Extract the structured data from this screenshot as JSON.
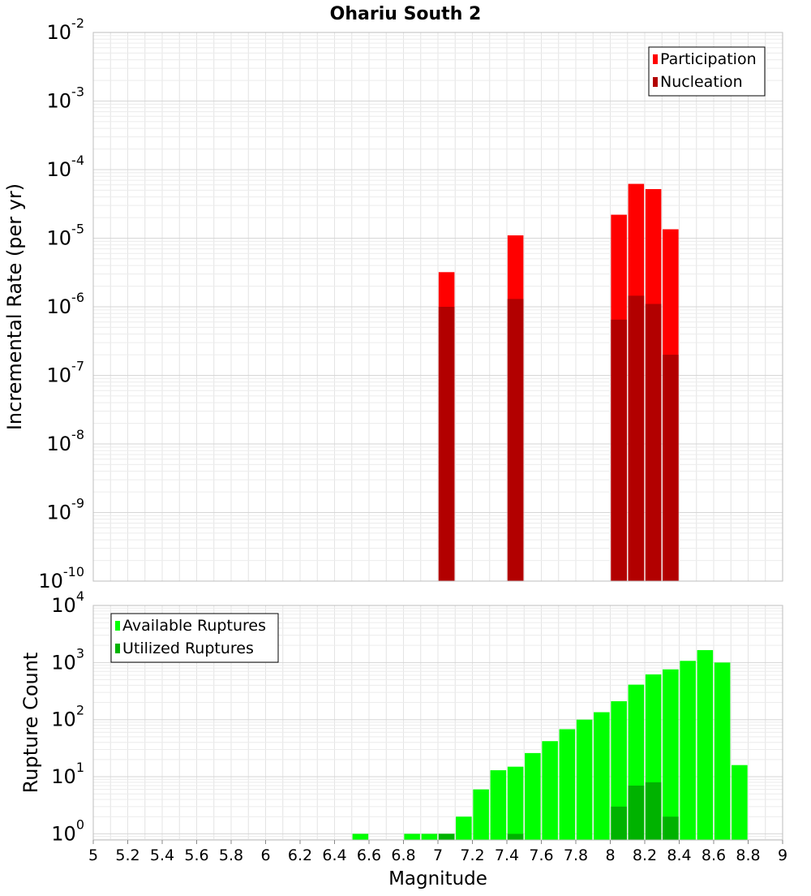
{
  "title": "Ohariu South 2",
  "chart_data": [
    {
      "type": "bar",
      "title": "Ohariu South 2",
      "xlabel": "",
      "ylabel": "Incremental Rate (per yr)",
      "yscale": "log",
      "ylim": [
        1e-10,
        0.01
      ],
      "xlim": [
        5,
        9
      ],
      "y_tick_exponents": [
        -10,
        -9,
        -8,
        -7,
        -6,
        -5,
        -4,
        -3,
        -2
      ],
      "legend_position": "top-right",
      "grid": true,
      "series": [
        {
          "name": "Participation",
          "color": "#ff0000",
          "x": [
            7.05,
            7.45,
            8.05,
            8.15,
            8.25,
            8.35
          ],
          "values": [
            3.2e-06,
            1.1e-05,
            2.2e-05,
            6.2e-05,
            5.2e-05,
            1.35e-05
          ]
        },
        {
          "name": "Nucleation",
          "color": "#b20000",
          "x": [
            7.05,
            7.45,
            8.05,
            8.15,
            8.25,
            8.35
          ],
          "values": [
            1e-06,
            1.3e-06,
            6.5e-07,
            1.45e-06,
            1.1e-06,
            2e-07
          ]
        }
      ]
    },
    {
      "type": "bar",
      "title": "",
      "xlabel": "Magnitude",
      "ylabel": "Rupture Count",
      "yscale": "log",
      "ylim": [
        0.78,
        10000
      ],
      "xlim": [
        5,
        9
      ],
      "y_tick_exponents": [
        0,
        1,
        2,
        3,
        4
      ],
      "x_ticks": [
        "5",
        "5.2",
        "5.4",
        "5.6",
        "5.8",
        "6",
        "6.2",
        "6.4",
        "6.6",
        "6.8",
        "7",
        "7.2",
        "7.4",
        "7.6",
        "7.8",
        "8",
        "8.2",
        "8.4",
        "8.6",
        "8.8",
        "9"
      ],
      "legend_position": "top-left",
      "grid": true,
      "series": [
        {
          "name": "Available Ruptures",
          "color": "#00ff00",
          "x": [
            6.55,
            6.85,
            6.95,
            7.05,
            7.15,
            7.25,
            7.35,
            7.45,
            7.55,
            7.65,
            7.75,
            7.85,
            7.95,
            8.05,
            8.15,
            8.25,
            8.35,
            8.45,
            8.55,
            8.65,
            8.75
          ],
          "values": [
            1,
            1,
            1,
            1,
            2,
            6,
            13,
            15,
            26,
            42,
            68,
            100,
            135,
            210,
            410,
            620,
            760,
            1070,
            1650,
            1000,
            16
          ]
        },
        {
          "name": "Utilized Ruptures",
          "color": "#00b200",
          "x": [
            7.05,
            7.45,
            8.05,
            8.15,
            8.25,
            8.35
          ],
          "values": [
            1,
            1,
            3,
            7,
            8,
            2
          ]
        }
      ]
    }
  ]
}
